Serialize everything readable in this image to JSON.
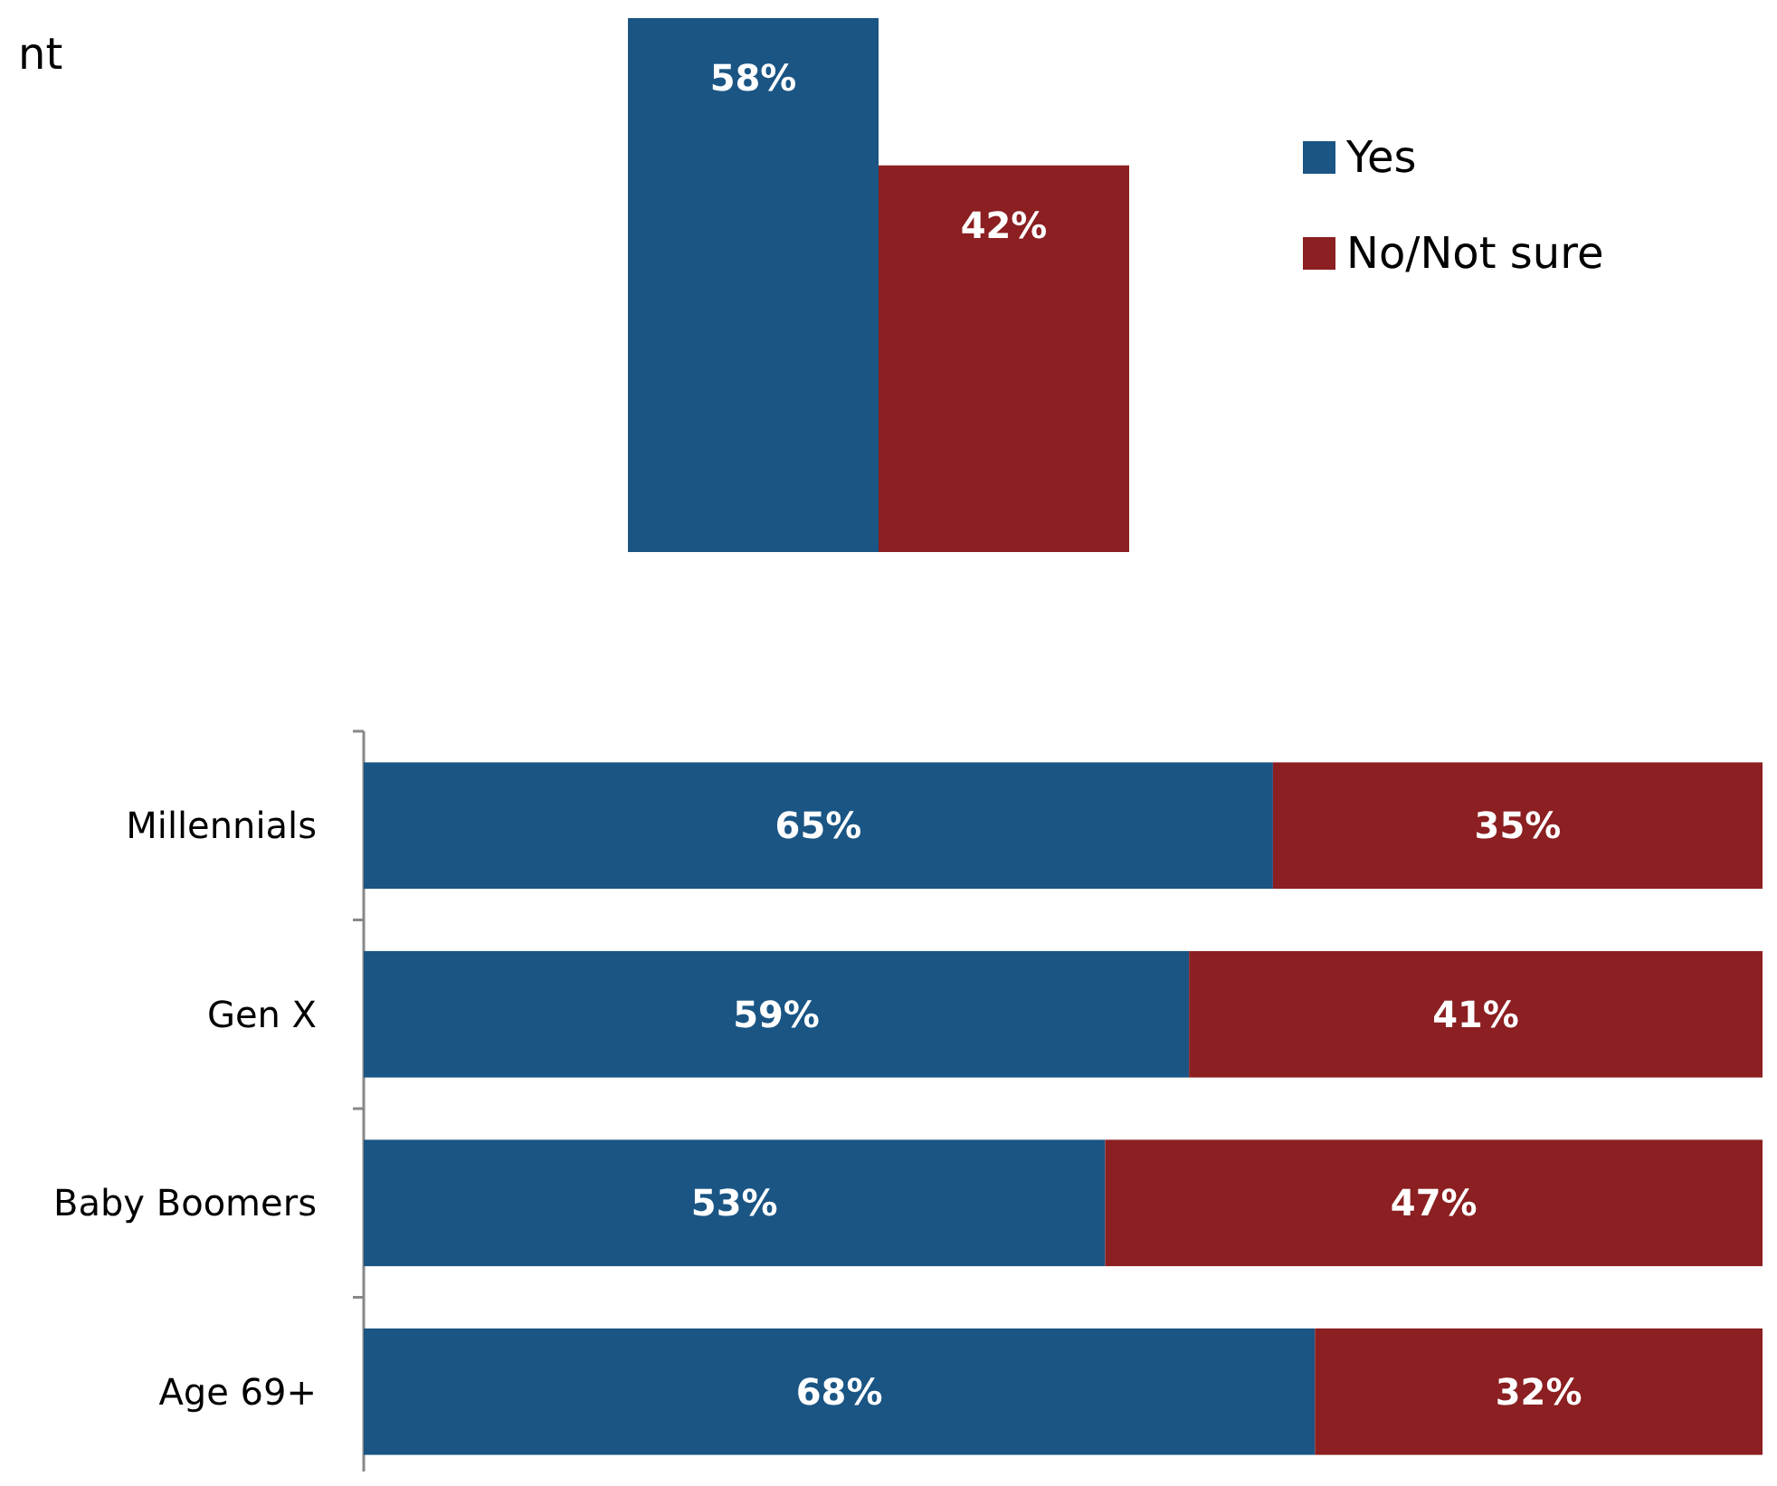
{
  "chart_data": [
    {
      "type": "bar",
      "annotations": [
        "nt"
      ],
      "categories": [
        null
      ],
      "legend": "right",
      "series": [
        {
          "name": "Yes",
          "color": "#1a5584",
          "values": [
            58
          ],
          "value_labels": [
            "58%"
          ]
        },
        {
          "name": "No/Not sure",
          "color": "#8b1f21",
          "values": [
            42
          ],
          "value_labels": [
            "42%"
          ]
        }
      ]
    },
    {
      "type": "bar",
      "orientation": "horizontal",
      "stacked": true,
      "categories": [
        "Millennials",
        "Gen X",
        "Baby Boomers",
        "Age 69+"
      ],
      "series": [
        {
          "color": "#1a5584",
          "values": [
            65,
            59,
            53,
            68
          ],
          "value_labels": [
            "65%",
            "59%",
            "53%",
            "68%"
          ]
        },
        {
          "color": "#8b1f21",
          "values": [
            35,
            41,
            47,
            32
          ],
          "value_labels": [
            "35%",
            "41%",
            "47%",
            "32%"
          ]
        }
      ]
    }
  ]
}
